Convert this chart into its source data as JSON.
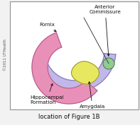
{
  "title": "location of Figure 1B",
  "copyright": "©2011 UTHealth",
  "labels": {
    "fornix": "Fornix",
    "anterior_commissure": "Anterior\nCommissure",
    "hippocampal": "Hippocampal\nFormation",
    "amygdala": "Amygdala"
  },
  "colors": {
    "background": "#f2f2f2",
    "fornix_fill": "#c0b8e8",
    "fornix_stroke": "#9080c0",
    "hippocampal_fill": "#e890b8",
    "hippocampal_stroke": "#b05888",
    "amygdala_fill": "#e8e860",
    "amygdala_stroke": "#909030",
    "anterior_commissure_fill": "#90cc90",
    "anterior_commissure_stroke": "#508050",
    "line_color": "#404040",
    "text_color": "#101010",
    "border_color": "#909090",
    "inner_bg": "#ffffff"
  },
  "figsize": [
    1.97,
    1.77
  ],
  "dpi": 100
}
